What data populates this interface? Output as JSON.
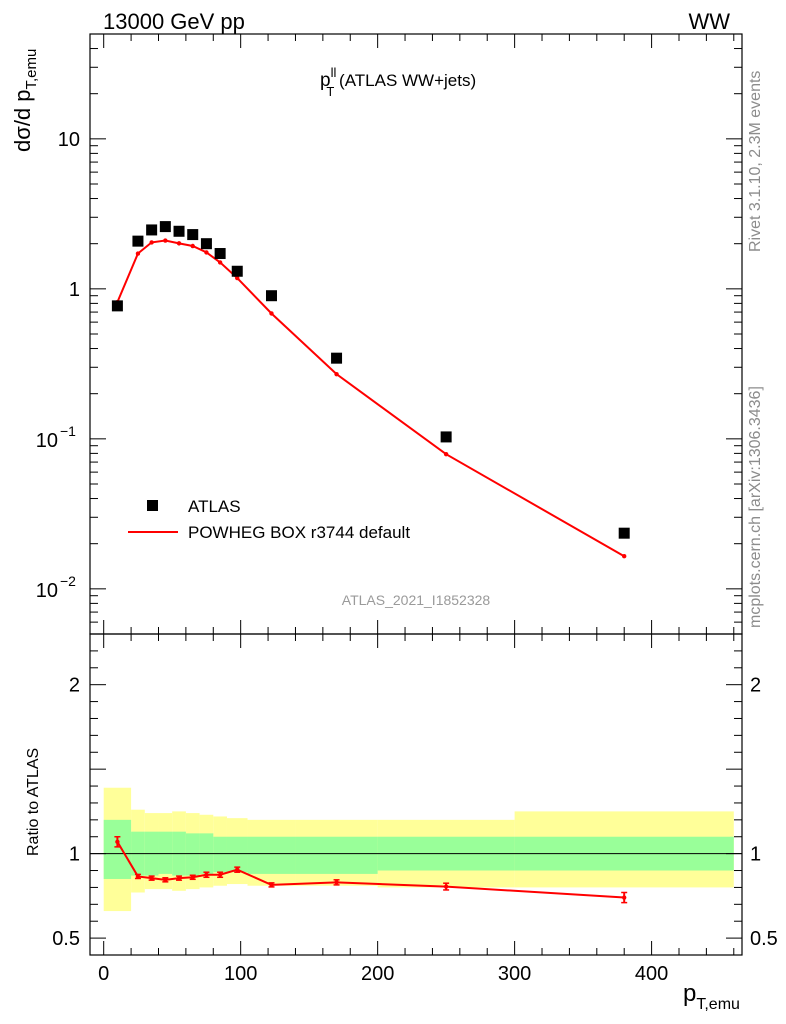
{
  "header": {
    "left": "13000 GeV pp",
    "right": "WW"
  },
  "side_text": {
    "version": "Rivet 3.1.10,  2.3M events",
    "site": "mcplots.cern.ch [arXiv:1306.3436]"
  },
  "chart_data": [
    {
      "type": "scatter",
      "panel": "main",
      "title_main": "p",
      "title_sup": "ll",
      "title_sub": "T",
      "title_rest": " (ATLAS WW+jets)",
      "ylabel_main": "dσ/d p",
      "ylabel_sub": "T,emu",
      "watermark": "ATLAS_2021_I1852328",
      "yscale": "log",
      "ylim": [
        0.005,
        50
      ],
      "xlim": [
        -10,
        466
      ],
      "y_ticks": [
        {
          "value": 10,
          "label": "10"
        },
        {
          "value": 1,
          "label": "1"
        },
        {
          "value": 0.1,
          "base": "10",
          "exp": "−1"
        },
        {
          "value": 0.01,
          "base": "10",
          "exp": "−2"
        }
      ],
      "legend": {
        "position": "bottom-left",
        "entries": [
          "ATLAS",
          "POWHEG BOX r3744 default"
        ]
      },
      "series": [
        {
          "name": "ATLAS",
          "color": "#000000",
          "x": [
            10,
            25,
            35,
            45,
            55,
            65,
            75,
            85,
            97.5,
            122.5,
            170,
            250,
            380
          ],
          "y": [
            0.77,
            2.08,
            2.47,
            2.6,
            2.42,
            2.3,
            2.0,
            1.72,
            1.31,
            0.9,
            0.345,
            0.103,
            0.0235
          ]
        },
        {
          "name": "POWHEG BOX r3744 default",
          "color": "#ff0000",
          "x": [
            10,
            25,
            35,
            45,
            55,
            65,
            75,
            85,
            97.5,
            122.5,
            170,
            250,
            380
          ],
          "y": [
            0.815,
            1.72,
            2.04,
            2.1,
            2.01,
            1.93,
            1.75,
            1.5,
            1.18,
            0.685,
            0.27,
            0.079,
            0.0165
          ]
        }
      ]
    },
    {
      "type": "line",
      "panel": "ratio",
      "ylabel": "Ratio to ATLAS",
      "xlabel_main": "p",
      "xlabel_sub": "T,emu",
      "ylim": [
        0.4,
        2.3
      ],
      "xlim": [
        -10,
        466
      ],
      "x_ticks": [
        0,
        100,
        200,
        300,
        400
      ],
      "y_ticks": [
        0.5,
        1,
        2
      ],
      "reference_line": 1,
      "bands": {
        "edges": [
          0,
          20,
          30,
          40,
          50,
          60,
          70,
          80,
          90,
          105,
          140,
          200,
          300,
          460
        ],
        "yellow_lo": [
          0.66,
          0.77,
          0.79,
          0.79,
          0.78,
          0.79,
          0.8,
          0.81,
          0.82,
          0.81,
          0.81,
          0.8,
          0.8
        ],
        "yellow_hi": [
          1.39,
          1.26,
          1.24,
          1.24,
          1.25,
          1.24,
          1.23,
          1.22,
          1.21,
          1.2,
          1.2,
          1.2,
          1.25
        ],
        "green_lo": [
          0.85,
          0.87,
          0.87,
          0.88,
          0.87,
          0.87,
          0.88,
          0.89,
          0.89,
          0.88,
          0.88,
          0.9,
          0.9
        ],
        "green_hi": [
          1.2,
          1.13,
          1.13,
          1.13,
          1.13,
          1.12,
          1.12,
          1.1,
          1.1,
          1.1,
          1.1,
          1.1,
          1.1
        ]
      },
      "series": [
        {
          "name": "POWHEG BOX r3744 default",
          "color": "#ff0000",
          "x": [
            10,
            25,
            35,
            45,
            55,
            65,
            75,
            85,
            97.5,
            122.5,
            170,
            250,
            380
          ],
          "y": [
            1.07,
            0.865,
            0.855,
            0.845,
            0.855,
            0.86,
            0.875,
            0.875,
            0.905,
            0.815,
            0.83,
            0.805,
            0.74
          ],
          "err": [
            0.03,
            0.012,
            0.012,
            0.012,
            0.012,
            0.012,
            0.015,
            0.015,
            0.015,
            0.012,
            0.015,
            0.02,
            0.03
          ]
        }
      ]
    }
  ]
}
